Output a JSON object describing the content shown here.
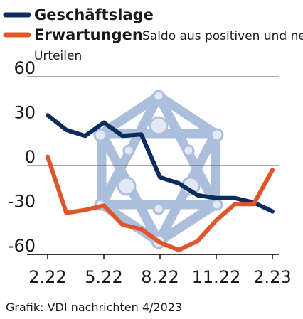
{
  "chart_data": {
    "type": "line",
    "title": "",
    "xlabel": "",
    "ylabel": "",
    "note": "Saldo aus positiven und negativen Urteilen",
    "source": "Grafik: VDI nachrichten 4/2023",
    "ylim": [
      -60,
      60
    ],
    "yticks": [
      "60",
      "30",
      "0",
      "-30",
      "-60"
    ],
    "ytick_values": [
      60,
      30,
      0,
      -30,
      -60
    ],
    "xticks": [
      "2.22",
      "5.22",
      "8.22",
      "11.22",
      "2.23"
    ],
    "xtick_positions": [
      0,
      3,
      6,
      9,
      12
    ],
    "x": [
      0,
      1,
      2,
      3,
      4,
      5,
      6,
      7,
      8,
      9,
      10,
      11,
      12
    ],
    "grid": true,
    "legend_position": "top-left",
    "series": [
      {
        "name": "Geschäftslage",
        "color": "#0b2c5c",
        "values": [
          34,
          24,
          20,
          29,
          20,
          21,
          -8,
          -12,
          -20,
          -22,
          -22,
          -25,
          -31
        ]
      },
      {
        "name": "Erwartungen",
        "color": "#e2552b",
        "values": [
          6,
          -32,
          -30,
          -27,
          -40,
          -43,
          -52,
          -57,
          -51,
          -37,
          -26,
          -26,
          -3
        ]
      }
    ],
    "background_icon": "network-hexagon-icon"
  }
}
